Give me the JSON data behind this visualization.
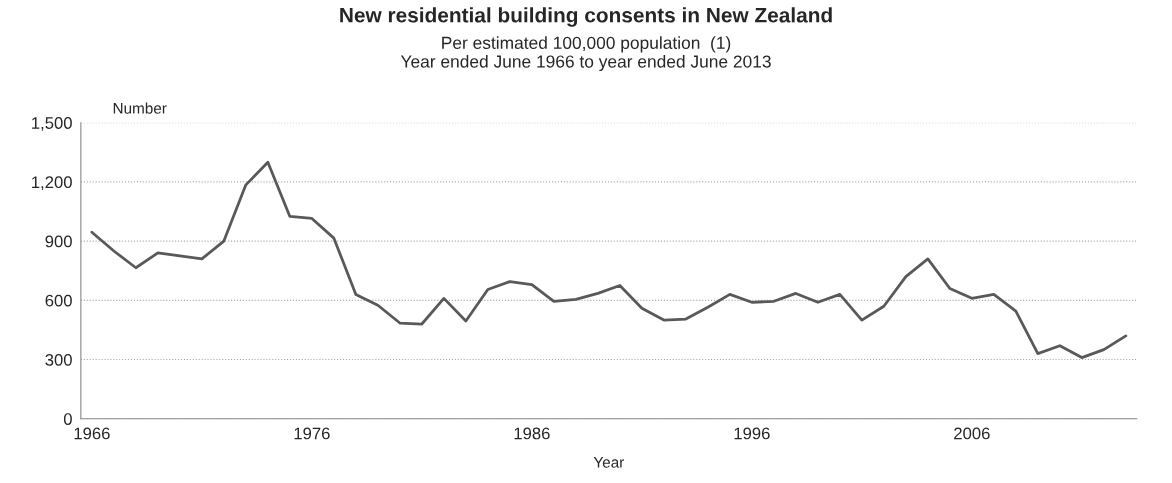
{
  "chart_data": {
    "type": "line",
    "title": "New residential building consents in New Zealand",
    "subtitle": "Per estimated 100,000 population  (1)\nYear ended June 1966 to year ended June 2013",
    "xlabel": "Year",
    "ylabel": "Number",
    "x": [
      1966,
      1967,
      1968,
      1969,
      1970,
      1971,
      1972,
      1973,
      1974,
      1975,
      1976,
      1977,
      1978,
      1979,
      1980,
      1981,
      1982,
      1983,
      1984,
      1985,
      1986,
      1987,
      1988,
      1989,
      1990,
      1991,
      1992,
      1993,
      1994,
      1995,
      1996,
      1997,
      1998,
      1999,
      2000,
      2001,
      2002,
      2003,
      2004,
      2005,
      2006,
      2007,
      2008,
      2009,
      2010,
      2011,
      2012,
      2013
    ],
    "series": [
      {
        "color": "#595959",
        "values": [
          945,
          850,
          765,
          840,
          825,
          810,
          900,
          1185,
          1300,
          1025,
          1015,
          915,
          630,
          575,
          485,
          480,
          610,
          495,
          655,
          695,
          680,
          595,
          605,
          635,
          675,
          560,
          500,
          505,
          565,
          630,
          590,
          595,
          635,
          590,
          630,
          500,
          570,
          720,
          810,
          660,
          610,
          630,
          545,
          330,
          370,
          310,
          350,
          420
        ]
      }
    ],
    "xlim": [
      1965.5,
      2013.5
    ],
    "xticks": [
      1966,
      1976,
      1986,
      1996,
      2006
    ],
    "ylim": [
      0,
      1500
    ],
    "yticks": [
      0,
      {
        "value": 300,
        "label": "300"
      },
      {
        "value": 600,
        "label": "600"
      },
      {
        "value": 900,
        "label": "900"
      },
      {
        "value": 1200,
        "label": "1,200"
      },
      {
        "value": 1500,
        "label": "1,500"
      }
    ],
    "grid": "y",
    "legend": false,
    "marker": "none",
    "line_style": "solid"
  }
}
